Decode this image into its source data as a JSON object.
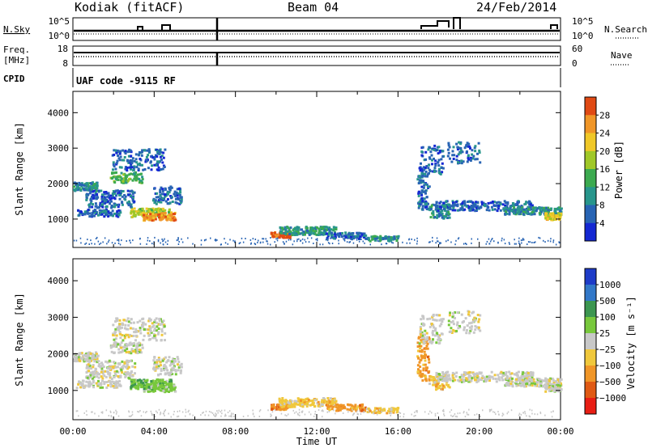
{
  "header": {
    "station": "Kodiak (fitACF)",
    "beam": "Beam 04",
    "date": "24/Feb/2014"
  },
  "top_panels": {
    "nsky_label": "N.Sky",
    "nsky_ticks": [
      "10^5",
      "10^0"
    ],
    "nsearch_label": "N.Search",
    "nsearch_ticks": [
      "10^5",
      "10^0"
    ],
    "freq_label": "Freq.",
    "freq_unit": "[MHz]",
    "freq_ticks": [
      "18",
      "8"
    ],
    "nave_label": "Nave",
    "nave_ticks": [
      "60",
      "0"
    ],
    "cpid_label": "CPID",
    "cpid_text": "UAF code -9115 RF"
  },
  "chart_data": [
    {
      "type": "heatmap",
      "panel": "power",
      "ylabel": "Slant Range [km]",
      "xlabel": "",
      "yticks": [
        "1000",
        "2000",
        "3000",
        "4000"
      ],
      "ylim": [
        200,
        4600
      ],
      "xlim": [
        0,
        24
      ],
      "colorbar": {
        "label": "Power [dB]",
        "ticks": [
          "4",
          "8",
          "12",
          "16",
          "20",
          "24",
          "28"
        ],
        "colors": [
          "#1428d2",
          "#2864b4",
          "#28968c",
          "#3caa50",
          "#a0c828",
          "#f0c828",
          "#f09628",
          "#e04a14"
        ]
      }
    },
    {
      "type": "heatmap",
      "panel": "velocity",
      "ylabel": "Slant Range [km]",
      "xlabel": "Time UT",
      "yticks": [
        "1000",
        "2000",
        "3000",
        "4000"
      ],
      "ylim": [
        200,
        4600
      ],
      "xlim": [
        0,
        24
      ],
      "xticks": [
        "00:00",
        "04:00",
        "08:00",
        "12:00",
        "16:00",
        "20:00",
        "00:00"
      ],
      "colorbar": {
        "label": "Velocity [m s⁻¹]",
        "ticks": [
          "1000",
          "500",
          "100",
          "25",
          "−25",
          "−100",
          "−500",
          "−1000"
        ],
        "colors": [
          "#1e3cc8",
          "#3278c8",
          "#3c9650",
          "#78c83c",
          "#c8c8c8",
          "#f0c83c",
          "#f09628",
          "#e05a14",
          "#e81e14"
        ]
      }
    }
  ]
}
